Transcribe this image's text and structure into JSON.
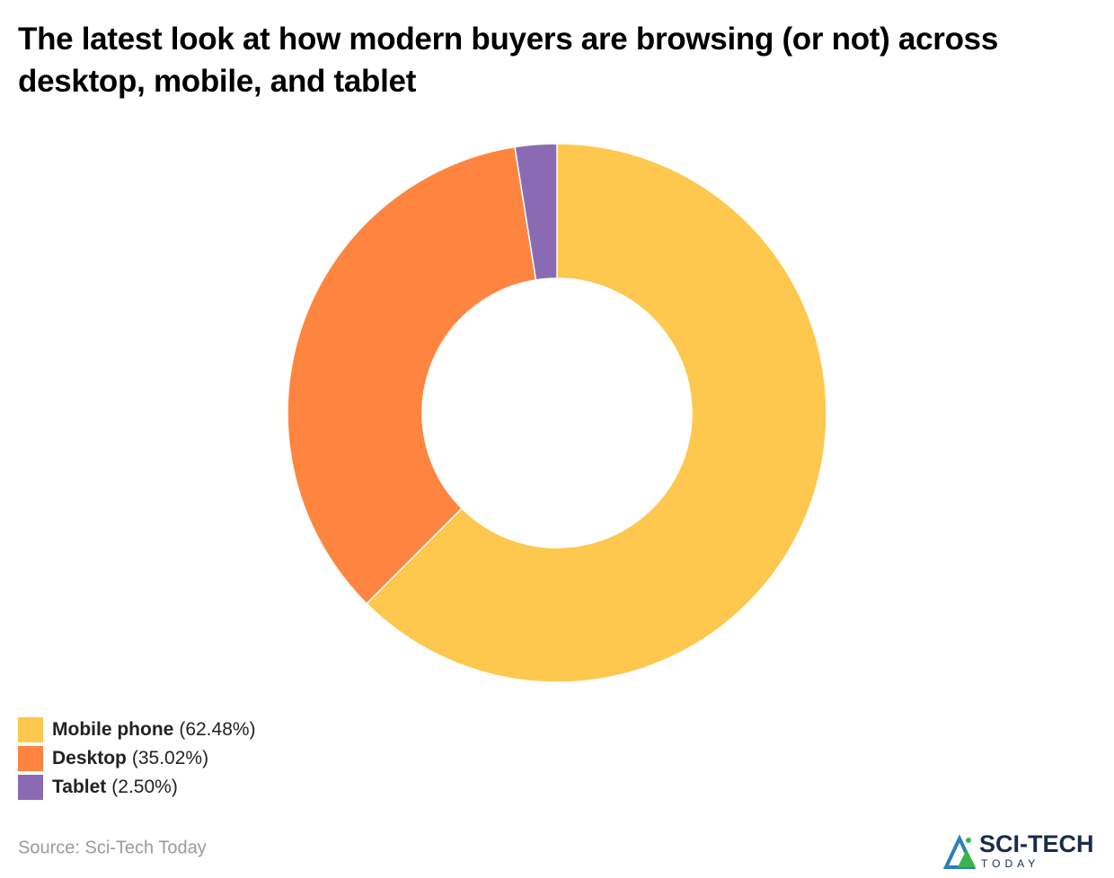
{
  "chart_data": {
    "type": "donut",
    "title": "The latest look at how modern buyers are browsing (or not) across desktop, mobile, and tablet",
    "categories": [
      "Mobile phone",
      "Desktop",
      "Tablet"
    ],
    "values": [
      62.48,
      35.02,
      2.5
    ],
    "value_labels": [
      "(62.48%)",
      "(35.02%)",
      "(2.50%)"
    ],
    "colors": [
      "#fec84f",
      "#fe8540",
      "#8a6bb3"
    ],
    "source": "Source: Sci-Tech Today"
  },
  "logo": {
    "title": "SCI-TECH",
    "subtitle": "TODAY"
  }
}
